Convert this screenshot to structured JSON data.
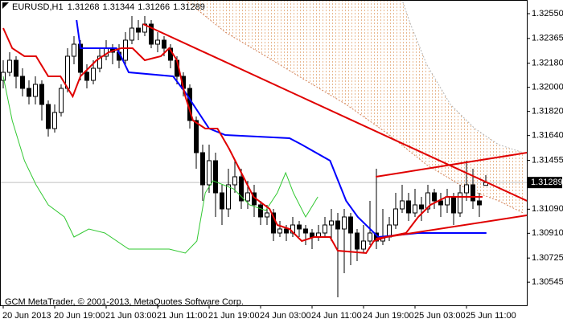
{
  "chart_data": {
    "type": "candlestick",
    "title": "EURUSD,H1",
    "footer": "GCM MetaTrader, © 2001-2013, MetaQuotes Software Corp.",
    "categories": [
      "20 Jun 2013",
      null,
      null,
      null,
      null,
      null,
      null,
      null,
      "20 Jun 19:00",
      null,
      null,
      null,
      null,
      null,
      null,
      null,
      "21 Jun 03:00",
      null,
      null,
      null,
      null,
      null,
      null,
      null,
      "21 Jun 11:00",
      null,
      null,
      null,
      null,
      null,
      null,
      null,
      "21 Jun 19:00",
      null,
      null,
      null,
      null,
      null,
      null,
      null,
      "24 Jun 03:00",
      null,
      null,
      null,
      null,
      null,
      null,
      null,
      "24 Jun 11:00",
      null,
      null,
      null,
      null,
      null,
      null,
      null,
      "24 Jun 19:00",
      null,
      null,
      null,
      null,
      null,
      null,
      null,
      "25 Jun 03:00",
      null,
      null,
      null,
      null,
      null,
      null,
      null,
      "25 Jun 11:00",
      null,
      null,
      null
    ],
    "open": [
      1.32052,
      1.32112,
      1.32202,
      1.32082,
      1.31992,
      1.31932,
      1.32022,
      1.31872,
      1.31692,
      1.31812,
      1.31992,
      1.32232,
      1.32322,
      1.32112,
      1.32052,
      1.32142,
      1.32232,
      1.32292,
      1.32262,
      1.32202,
      1.32352,
      1.32442,
      1.32412,
      1.32472,
      1.32322,
      1.32352,
      1.32292,
      1.32202,
      1.32082,
      1.31992,
      1.31752,
      1.31512,
      1.31272,
      1.31452,
      1.31212,
      1.31092,
      1.31272,
      1.31332,
      1.31152,
      1.31212,
      1.31122,
      1.31032,
      1.31062,
      1.30912,
      1.30942,
      1.30912,
      1.30972,
      1.30942,
      1.30912,
      1.30882,
      1.30912,
      1.30972,
      1.31002,
      1.30942,
      1.31032,
      1.30912,
      1.30792,
      1.30852,
      1.30912,
      1.30852,
      1.30882,
      1.30972,
      1.31092,
      1.31152,
      1.31062,
      1.31122,
      1.31092,
      1.31212,
      1.31152,
      1.31122,
      1.31182,
      1.31062,
      1.31212,
      1.31272,
      1.31152,
      1.31268
    ],
    "high": [
      1.32202,
      1.32262,
      1.32232,
      1.32142,
      1.32052,
      1.32082,
      1.32052,
      1.31902,
      1.31872,
      1.32022,
      1.32292,
      1.32382,
      1.32352,
      1.32172,
      1.32202,
      1.32292,
      1.32352,
      1.32322,
      1.32322,
      1.32412,
      1.32532,
      1.32502,
      1.32532,
      1.32502,
      1.32412,
      1.32382,
      1.32322,
      1.32232,
      1.32112,
      1.32022,
      1.31782,
      1.31572,
      1.31572,
      1.31512,
      1.31272,
      1.31392,
      1.31452,
      1.31392,
      1.31302,
      1.31272,
      1.31152,
      1.31122,
      1.31092,
      1.31002,
      1.30972,
      1.31032,
      1.31002,
      1.30972,
      1.30942,
      1.30972,
      1.31032,
      1.31092,
      1.31062,
      1.31092,
      1.31062,
      1.30942,
      1.30972,
      1.31152,
      1.31392,
      1.31092,
      1.31032,
      1.31212,
      1.31272,
      1.31212,
      1.31242,
      1.31182,
      1.31272,
      1.31242,
      1.31212,
      1.31242,
      1.31212,
      1.31272,
      1.31452,
      1.31392,
      1.31212,
      1.31344
    ],
    "low": [
      1.31992,
      1.32082,
      1.31992,
      1.31932,
      1.31872,
      1.31872,
      1.31752,
      1.31632,
      1.31662,
      1.31782,
      1.31962,
      1.32172,
      1.32052,
      1.31992,
      1.32022,
      1.32112,
      1.32202,
      1.32172,
      1.32142,
      1.32172,
      1.32322,
      1.32352,
      1.32382,
      1.32292,
      1.32262,
      1.32232,
      1.32142,
      1.32022,
      1.31932,
      1.31692,
      1.31392,
      1.31152,
      1.31212,
      1.31032,
      1.30972,
      1.31032,
      1.31212,
      1.31092,
      1.31092,
      1.31032,
      1.30972,
      1.30972,
      1.30852,
      1.30882,
      1.30852,
      1.30882,
      1.30882,
      1.30822,
      1.30792,
      1.30852,
      1.30882,
      1.30852,
      1.30432,
      1.30612,
      1.30672,
      1.30702,
      1.30762,
      1.30822,
      1.30792,
      1.30822,
      1.30852,
      1.30942,
      1.31062,
      1.31002,
      1.31032,
      1.31002,
      1.31062,
      1.31092,
      1.31032,
      1.31062,
      1.30972,
      1.31032,
      1.31152,
      1.31092,
      1.31032,
      1.31266
    ],
    "close": [
      1.32112,
      1.32202,
      1.32082,
      1.31992,
      1.31932,
      1.32022,
      1.31872,
      1.31692,
      1.31812,
      1.31992,
      1.32232,
      1.32322,
      1.32112,
      1.32052,
      1.32142,
      1.32232,
      1.32292,
      1.32262,
      1.32202,
      1.32352,
      1.32442,
      1.32412,
      1.32472,
      1.32322,
      1.32352,
      1.32292,
      1.32202,
      1.32082,
      1.31992,
      1.31752,
      1.31512,
      1.31272,
      1.31452,
      1.31212,
      1.31092,
      1.31272,
      1.31332,
      1.31152,
      1.31212,
      1.31122,
      1.31032,
      1.31062,
      1.30912,
      1.30942,
      1.30912,
      1.30972,
      1.30942,
      1.30912,
      1.30882,
      1.30912,
      1.30972,
      1.31002,
      1.30942,
      1.31032,
      1.30912,
      1.30792,
      1.30852,
      1.30912,
      1.30852,
      1.30882,
      1.30972,
      1.31092,
      1.31152,
      1.31062,
      1.31122,
      1.31092,
      1.31212,
      1.31152,
      1.31122,
      1.31182,
      1.31062,
      1.31212,
      1.31272,
      1.31152,
      1.31122,
      1.31289
    ],
    "up_color": "#ffffff",
    "down_color": "#000000",
    "candle_outline": "#000000",
    "price_line_color": "#c0c0c0",
    "xlim": [
      -0.5,
      81.375
    ],
    "ylim": [
      1.30372,
      1.32652
    ],
    "yticks": [
      {
        "value": 1.3255,
        "label": "1.32550"
      },
      1.32365,
      {
        "value": 1.3218,
        "label": "1.32180"
      },
      {
        "value": 1.32,
        "label": "1.32000"
      },
      {
        "value": 1.3182,
        "label": "1.31820"
      },
      {
        "value": 1.3164,
        "label": "1.31640"
      },
      1.31455,
      {
        "value": 1.3109,
        "label": "1.31090"
      },
      {
        "value": 1.3091,
        "label": "1.30910"
      },
      1.30725,
      1.30545
    ],
    "cloud": {
      "color": "#e8b890",
      "span_a": {
        "color": "#d2825a",
        "x": [
          28.3,
          34.5,
          40.8,
          47,
          53.3,
          59.5,
          65.8,
          72,
          77,
          80.8
        ],
        "values": [
          1.32652,
          1.32412,
          1.32232,
          1.32052,
          1.31872,
          1.31662,
          1.31422,
          1.31242,
          1.31152,
          1.31062
        ]
      },
      "span_b": {
        "color": "#b4b4b4",
        "x": [
          28.3,
          47,
          62,
          63.3,
          65.8,
          69.5,
          73.3,
          77,
          80.8
        ],
        "values": [
          1.32652,
          1.32652,
          1.32652,
          1.32472,
          1.32172,
          1.31872,
          1.31692,
          1.31572,
          1.31512
        ]
      }
    },
    "lines": [
      {
        "color": "#32c832",
        "width": 1,
        "x": [
          0,
          1.4,
          3.3,
          5.1,
          7,
          9.5,
          11,
          13.3,
          15.8,
          19.5,
          25.8,
          28.3,
          30.1,
          31.4,
          32.6,
          35.8,
          38.3,
          40.8,
          42.6,
          43.9,
          45.1,
          47,
          48.9
        ],
        "values": [
          1.32082,
          1.31752,
          1.31452,
          1.31272,
          1.31122,
          1.31032,
          1.30882,
          1.30942,
          1.30912,
          1.30792,
          1.30792,
          1.30762,
          1.30852,
          1.31212,
          1.31302,
          1.31242,
          1.31122,
          1.3108,
          1.31212,
          1.31362,
          1.31212,
          1.31032,
          1.31182
        ]
      },
      {
        "color": "#0000ff",
        "width": 2,
        "x": [
          11.4,
          12,
          17.6,
          18.3,
          19.5,
          26.4,
          28.3,
          32,
          34.5,
          44.5,
          46.4,
          50.8,
          53.3,
          55.1,
          58.3,
          64.5,
          75.1
        ],
        "values": [
          1.32502,
          1.32292,
          1.32292,
          1.32232,
          1.32112,
          1.32082,
          1.31962,
          1.31692,
          1.31644,
          1.3162,
          1.31572,
          1.31452,
          1.31152,
          1.31032,
          1.30882,
          1.30912,
          1.30912
        ]
      },
      {
        "color": "#e00000",
        "width": 2,
        "x": [
          0,
          1.4,
          3.3,
          5.1,
          7,
          8.9,
          10.8,
          12,
          14.5,
          16.4,
          18.3,
          20.1,
          22,
          24.5,
          25.8,
          27,
          28.3,
          29.5,
          31.4,
          33.3,
          35.1,
          37,
          38.9,
          41.4,
          42.6,
          44.5,
          46.4,
          48.3,
          50.8,
          52,
          56.4,
          57.6,
          59.5,
          62.6,
          64.5,
          66.4,
          68.9,
          71.4,
          74.5
        ],
        "values": [
          1.32442,
          1.32292,
          1.32232,
          1.32232,
          1.32082,
          1.32082,
          1.31932,
          1.32082,
          1.32202,
          1.32262,
          1.32292,
          1.32292,
          1.32202,
          1.32232,
          1.32292,
          1.32202,
          1.31932,
          1.31752,
          1.31692,
          1.31692,
          1.31542,
          1.31362,
          1.31182,
          1.31092,
          1.30972,
          1.30942,
          1.30852,
          1.30882,
          1.30882,
          1.3078,
          1.30762,
          1.30852,
          1.30882,
          1.30912,
          1.31032,
          1.31122,
          1.31182,
          1.31182,
          1.31182
        ]
      },
      {
        "color": "#e00000",
        "width": 2,
        "x": [
          21.75,
          81.4
        ],
        "values": [
          1.32472,
          1.31152
        ]
      },
      {
        "color": "#e00000",
        "width": 2,
        "x": [
          57.9,
          81.4
        ],
        "values": [
          1.31332,
          1.31512
        ]
      },
      {
        "color": "#e00000",
        "width": 2,
        "x": [
          57.9,
          81.4
        ],
        "values": [
          1.3087,
          1.31044
        ]
      }
    ]
  }
}
